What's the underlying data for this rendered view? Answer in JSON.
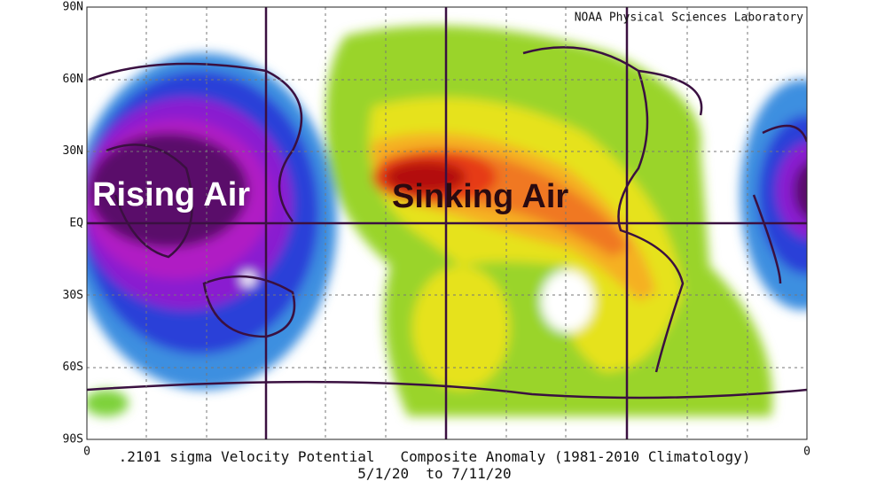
{
  "map": {
    "attribution": "NOAA Physical Sciences Laboratory",
    "lat_labels": [
      "90N",
      "60N",
      "30N",
      "EQ",
      "30S",
      "60S",
      "90S"
    ],
    "lon_labels": [
      "0",
      "0"
    ],
    "caption": {
      "line1": ".2101 sigma Velocity Potential   Composite Anomaly (1981-2010 Climatology)",
      "line2": "5/1/20  to 7/11/20"
    },
    "annotations": [
      "Rising Air",
      "Sinking Air"
    ]
  }
}
